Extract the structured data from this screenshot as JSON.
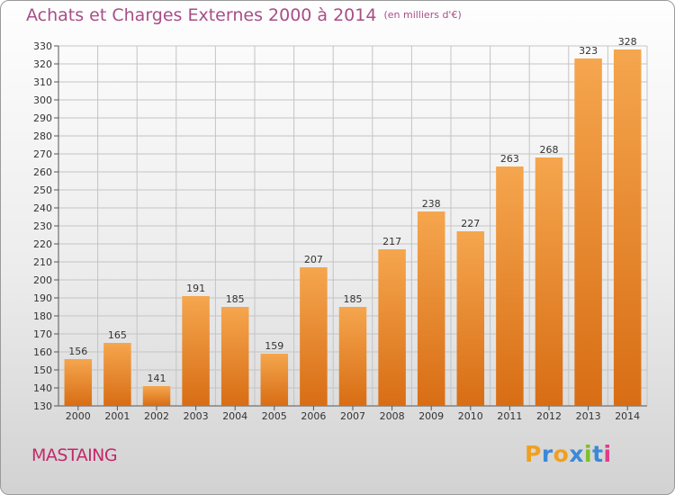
{
  "header": {
    "title": "Achats et Charges Externes 2000 à 2014",
    "unit": "(en milliers d'€)"
  },
  "commune": "MASTAING",
  "logo": {
    "text": "Proxiti",
    "letters": [
      "P",
      "r",
      "o",
      "x",
      "i",
      "t",
      "i"
    ],
    "colors": [
      "#f0a020",
      "#3a8ad8",
      "#f0a020",
      "#3a8ad8",
      "#7cbf2a",
      "#3a8ad8",
      "#e23a8a"
    ]
  },
  "chart_data": {
    "type": "bar",
    "title": "Achats et Charges Externes 2000 à 2014",
    "subtitle": "(en milliers d'€)",
    "xlabel": "",
    "ylabel": "",
    "categories": [
      "2000",
      "2001",
      "2002",
      "2003",
      "2004",
      "2005",
      "2006",
      "2007",
      "2008",
      "2009",
      "2010",
      "2011",
      "2012",
      "2013",
      "2014"
    ],
    "values": [
      156,
      165,
      141,
      191,
      185,
      159,
      207,
      185,
      217,
      238,
      227,
      263,
      268,
      323,
      328
    ],
    "ylim": [
      130,
      330
    ],
    "ytick_step": 10,
    "grid": true,
    "data_labels": true,
    "bar_colors": {
      "top": "#f5a64e",
      "bottom": "#d86d14"
    }
  }
}
